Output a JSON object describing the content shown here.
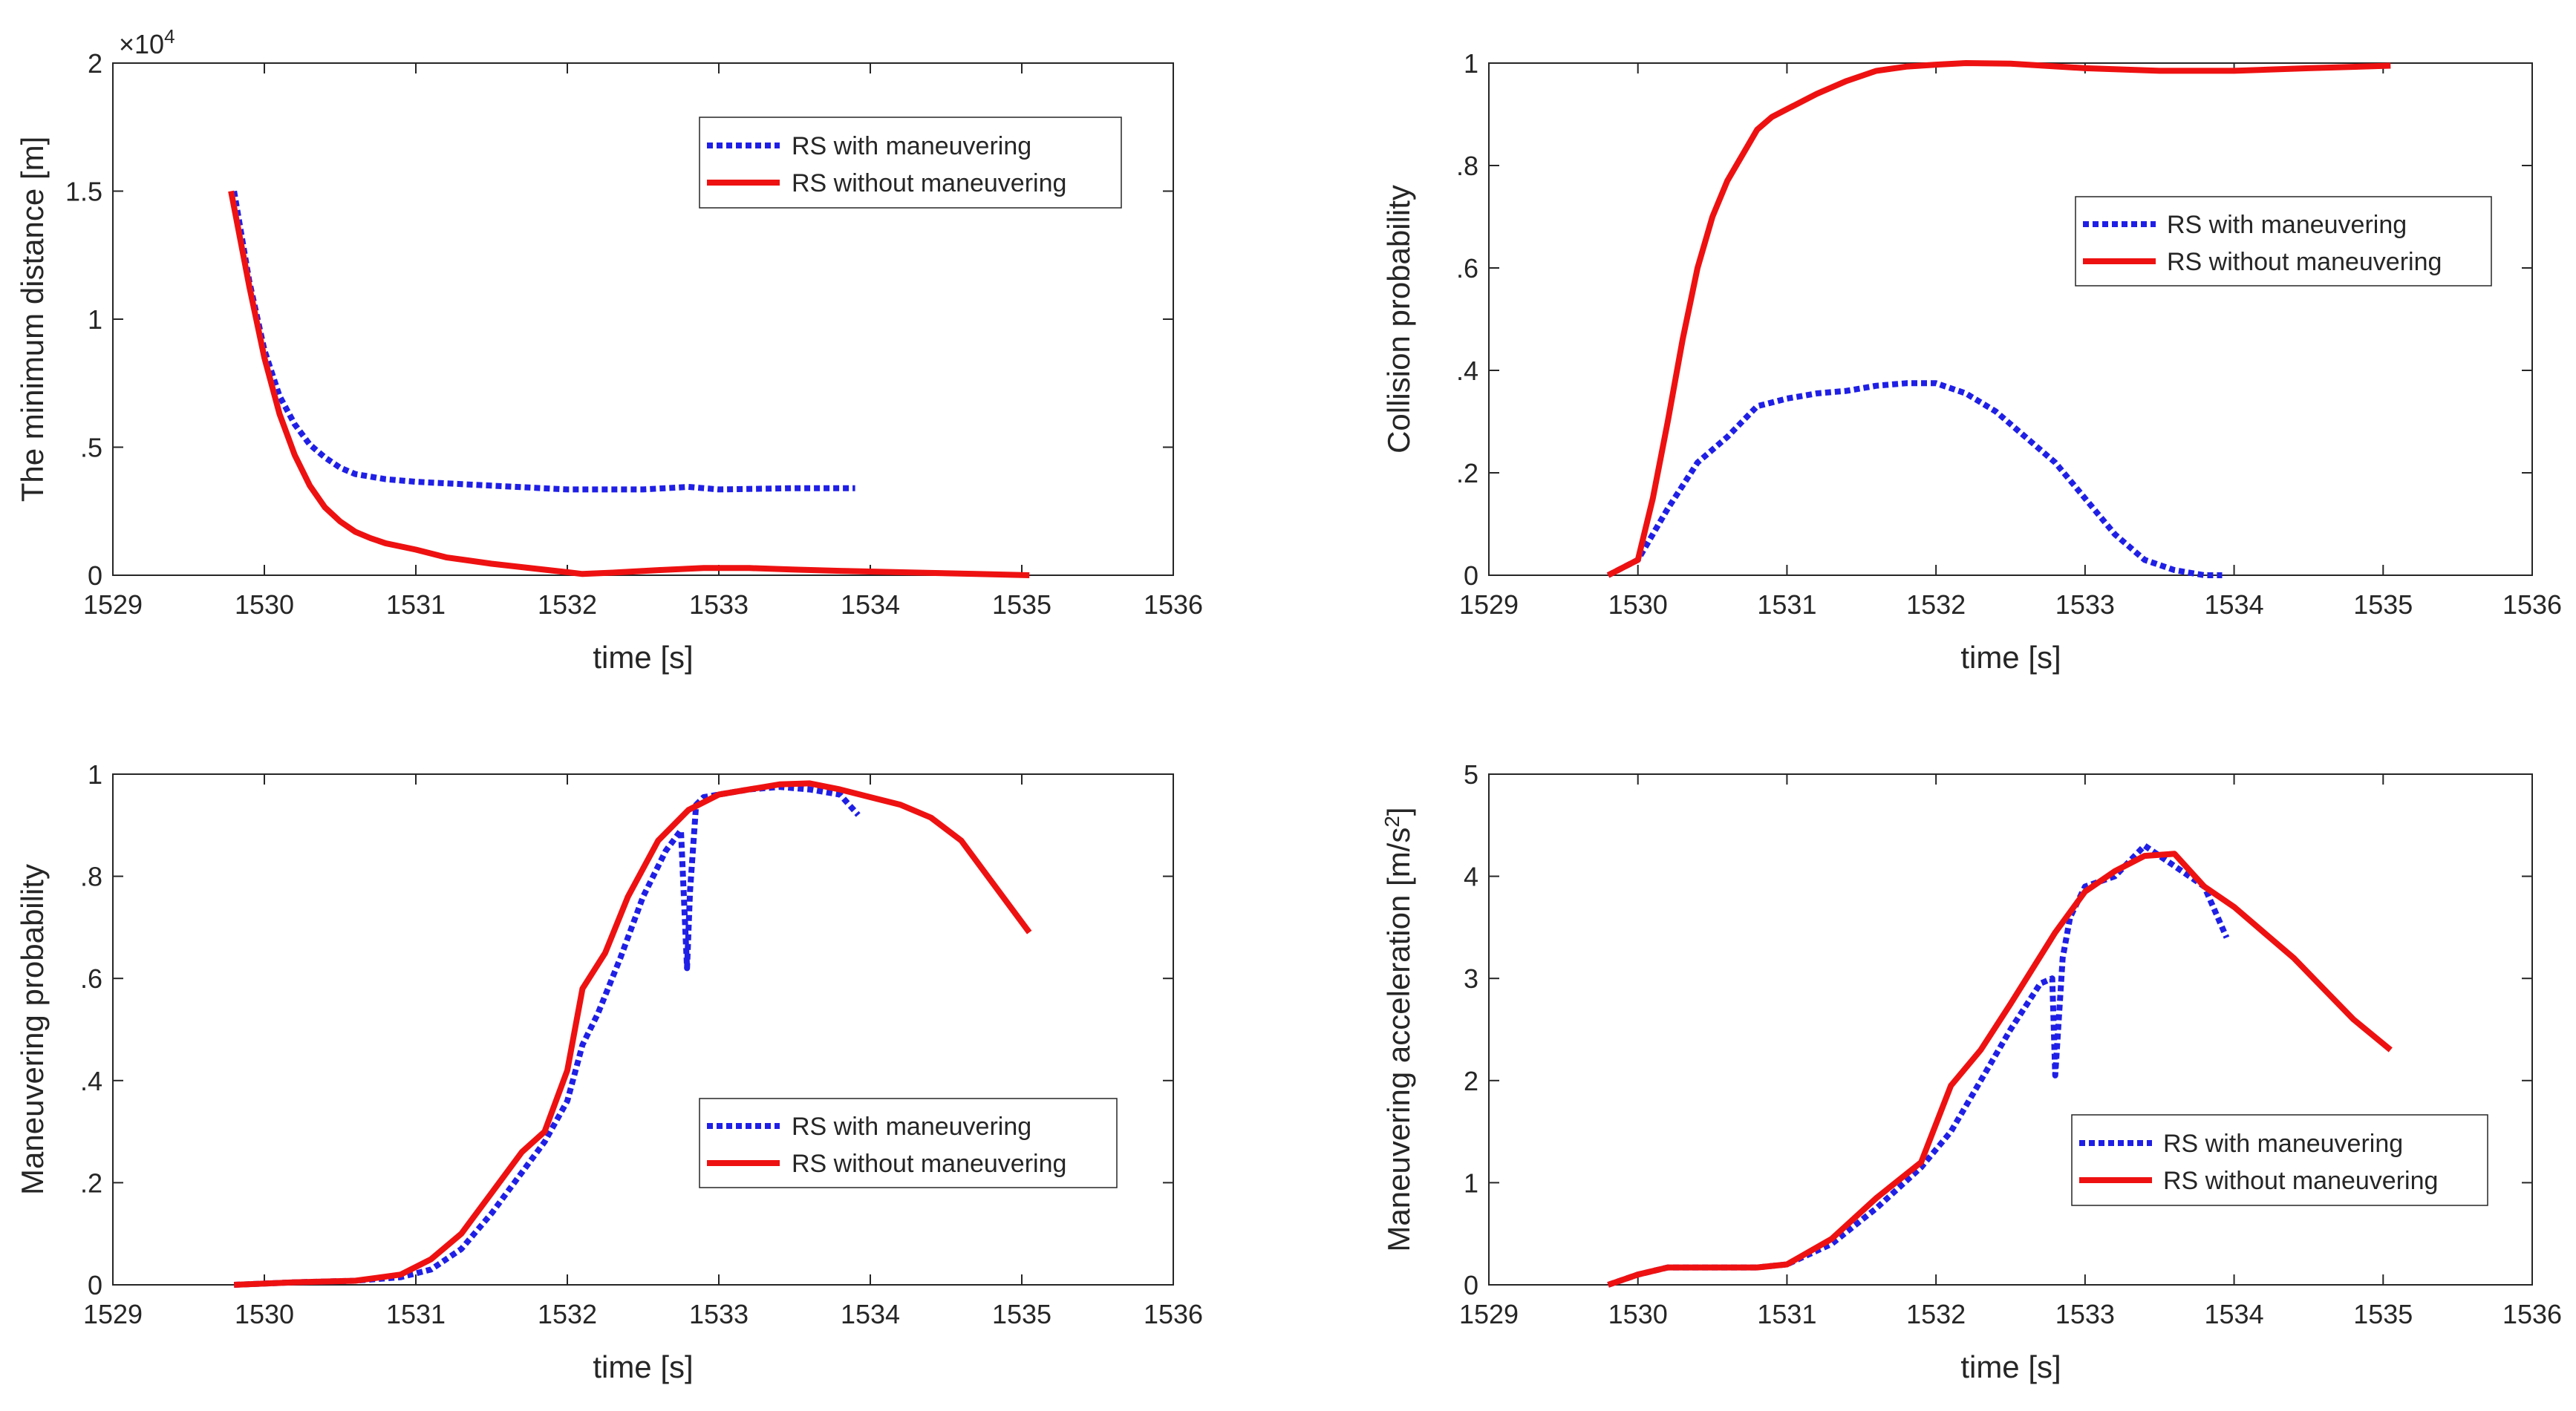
{
  "figure": {
    "caption": ""
  },
  "colors": {
    "with_maneuvering": "#1f1fe6",
    "without_maneuvering": "#ee1111",
    "axis": "#262626"
  },
  "chart_data": [
    {
      "id": "min-distance",
      "type": "line",
      "title": "",
      "xlabel": "time [s]",
      "ylabel": "The minimum distance [m]",
      "xlim": [
        1529,
        1536
      ],
      "ylim": [
        0,
        20000
      ],
      "xticks": [
        1529,
        1530,
        1531,
        1532,
        1533,
        1534,
        1535,
        1536
      ],
      "yticks": [
        0,
        0.5,
        1,
        1.5,
        2
      ],
      "y_scale_label": "×10",
      "y_scale_exp": "4",
      "y_scale": 10000,
      "legend_position": "top-right",
      "series": [
        {
          "name": "RS with maneuvering",
          "style": "dotted",
          "x": [
            1529.8,
            1529.9,
            1530.0,
            1530.1,
            1530.2,
            1530.3,
            1530.4,
            1530.5,
            1530.6,
            1530.8,
            1531.0,
            1531.5,
            1532.0,
            1532.5,
            1532.8,
            1533.0,
            1533.5,
            1533.9
          ],
          "y": [
            15000,
            11500,
            8800,
            7000,
            5900,
            5100,
            4600,
            4200,
            3950,
            3750,
            3650,
            3500,
            3350,
            3350,
            3450,
            3350,
            3400,
            3400
          ]
        },
        {
          "name": "RS without maneuvering",
          "style": "solid",
          "x": [
            1529.78,
            1529.9,
            1530.0,
            1530.1,
            1530.2,
            1530.3,
            1530.4,
            1530.5,
            1530.6,
            1530.7,
            1530.8,
            1531.0,
            1531.2,
            1531.5,
            1531.8,
            1532.0,
            1532.1,
            1532.3,
            1532.6,
            1532.9,
            1533.2,
            1533.5,
            1533.8,
            1534.1,
            1534.4,
            1534.7,
            1535.05
          ],
          "y": [
            15000,
            11300,
            8500,
            6300,
            4700,
            3500,
            2650,
            2100,
            1700,
            1450,
            1250,
            1000,
            700,
            450,
            250,
            120,
            50,
            100,
            200,
            280,
            280,
            220,
            170,
            130,
            90,
            50,
            0
          ]
        }
      ]
    },
    {
      "id": "collision-probability",
      "type": "line",
      "title": "",
      "xlabel": "time [s]",
      "ylabel": "Collision probability",
      "xlim": [
        1529,
        1536
      ],
      "ylim": [
        0,
        1
      ],
      "xticks": [
        1529,
        1530,
        1531,
        1532,
        1533,
        1534,
        1535,
        1536
      ],
      "yticks": [
        0,
        0.2,
        0.4,
        0.6,
        0.8,
        1
      ],
      "legend_position": "middle-right",
      "series": [
        {
          "name": "RS with maneuvering",
          "style": "dotted",
          "x": [
            1529.8,
            1530.0,
            1530.2,
            1530.4,
            1530.6,
            1530.8,
            1531.0,
            1531.2,
            1531.4,
            1531.6,
            1531.8,
            1532.0,
            1532.2,
            1532.4,
            1532.6,
            1532.8,
            1533.0,
            1533.2,
            1533.4,
            1533.6,
            1533.8,
            1533.92
          ],
          "y": [
            0.0,
            0.03,
            0.13,
            0.22,
            0.27,
            0.33,
            0.345,
            0.355,
            0.36,
            0.37,
            0.375,
            0.375,
            0.355,
            0.32,
            0.27,
            0.22,
            0.15,
            0.08,
            0.03,
            0.01,
            0.0,
            0.0
          ]
        },
        {
          "name": "RS without maneuvering",
          "style": "solid",
          "x": [
            1529.8,
            1530.0,
            1530.1,
            1530.2,
            1530.3,
            1530.4,
            1530.5,
            1530.6,
            1530.7,
            1530.8,
            1530.9,
            1531.0,
            1531.2,
            1531.4,
            1531.6,
            1531.8,
            1532.0,
            1532.2,
            1532.5,
            1533.0,
            1533.5,
            1534.0,
            1534.5,
            1535.05
          ],
          "y": [
            0.0,
            0.03,
            0.15,
            0.3,
            0.46,
            0.6,
            0.7,
            0.77,
            0.82,
            0.87,
            0.895,
            0.91,
            0.94,
            0.965,
            0.985,
            0.993,
            0.997,
            1.0,
            0.999,
            0.99,
            0.985,
            0.985,
            0.99,
            0.995
          ]
        }
      ]
    },
    {
      "id": "maneuvering-probability",
      "type": "line",
      "title": "",
      "xlabel": "time [s]",
      "ylabel": "Maneuvering probability",
      "xlim": [
        1529,
        1536
      ],
      "ylim": [
        0,
        1
      ],
      "xticks": [
        1529,
        1530,
        1531,
        1532,
        1533,
        1534,
        1535,
        1536
      ],
      "yticks": [
        0,
        0.2,
        0.4,
        0.6,
        0.8,
        1
      ],
      "legend_position": "bottom-right",
      "series": [
        {
          "name": "RS with maneuvering",
          "style": "dotted",
          "x": [
            1529.8,
            1530.2,
            1530.6,
            1530.9,
            1531.1,
            1531.3,
            1531.5,
            1531.7,
            1531.85,
            1532.0,
            1532.1,
            1532.2,
            1532.35,
            1532.5,
            1532.65,
            1532.75,
            1532.79,
            1532.81,
            1532.85,
            1532.9,
            1533.0,
            1533.2,
            1533.4,
            1533.6,
            1533.8,
            1533.92
          ],
          "y": [
            0.0,
            0.005,
            0.008,
            0.015,
            0.03,
            0.07,
            0.14,
            0.22,
            0.28,
            0.36,
            0.47,
            0.53,
            0.64,
            0.76,
            0.85,
            0.89,
            0.62,
            0.77,
            0.94,
            0.955,
            0.96,
            0.97,
            0.975,
            0.97,
            0.96,
            0.92
          ]
        },
        {
          "name": "RS without maneuvering",
          "style": "solid",
          "x": [
            1529.8,
            1530.2,
            1530.6,
            1530.9,
            1531.1,
            1531.3,
            1531.5,
            1531.7,
            1531.85,
            1532.0,
            1532.1,
            1532.25,
            1532.4,
            1532.6,
            1532.8,
            1533.0,
            1533.2,
            1533.4,
            1533.6,
            1533.8,
            1534.0,
            1534.2,
            1534.4,
            1534.6,
            1534.8,
            1535.05
          ],
          "y": [
            0.0,
            0.005,
            0.008,
            0.02,
            0.05,
            0.1,
            0.18,
            0.26,
            0.3,
            0.42,
            0.58,
            0.65,
            0.76,
            0.87,
            0.93,
            0.96,
            0.97,
            0.98,
            0.982,
            0.97,
            0.955,
            0.94,
            0.915,
            0.87,
            0.79,
            0.69
          ]
        }
      ]
    },
    {
      "id": "maneuvering-acceleration",
      "type": "line",
      "title": "",
      "xlabel": "time [s]",
      "ylabel": "Maneuvering acceleration [m/s",
      "ylabel_exp": "2",
      "ylabel_end": "]",
      "xlim": [
        1529,
        1536
      ],
      "ylim": [
        0,
        5
      ],
      "xticks": [
        1529,
        1530,
        1531,
        1532,
        1533,
        1534,
        1535,
        1536
      ],
      "yticks": [
        0,
        1,
        2,
        3,
        4,
        5
      ],
      "legend_position": "bottom-right",
      "series": [
        {
          "name": "RS with maneuvering",
          "style": "dotted",
          "x": [
            1529.8,
            1530.0,
            1530.2,
            1530.5,
            1530.8,
            1531.0,
            1531.3,
            1531.6,
            1531.9,
            1532.1,
            1532.3,
            1532.5,
            1532.7,
            1532.78,
            1532.8,
            1532.85,
            1532.9,
            1533.0,
            1533.2,
            1533.4,
            1533.5,
            1533.6,
            1533.8,
            1533.95
          ],
          "y": [
            0.0,
            0.1,
            0.17,
            0.17,
            0.17,
            0.2,
            0.4,
            0.75,
            1.15,
            1.5,
            2.0,
            2.5,
            2.95,
            3.0,
            2.05,
            3.2,
            3.6,
            3.9,
            4.0,
            4.3,
            4.2,
            4.1,
            3.9,
            3.4
          ]
        },
        {
          "name": "RS without maneuvering",
          "style": "solid",
          "x": [
            1529.8,
            1530.0,
            1530.2,
            1530.5,
            1530.8,
            1531.0,
            1531.3,
            1531.6,
            1531.9,
            1532.1,
            1532.3,
            1532.5,
            1532.8,
            1533.0,
            1533.2,
            1533.4,
            1533.6,
            1533.8,
            1534.0,
            1534.2,
            1534.4,
            1534.6,
            1534.8,
            1535.05
          ],
          "y": [
            0.0,
            0.1,
            0.17,
            0.17,
            0.17,
            0.2,
            0.45,
            0.85,
            1.2,
            1.95,
            2.3,
            2.75,
            3.45,
            3.85,
            4.05,
            4.2,
            4.22,
            3.9,
            3.7,
            3.45,
            3.2,
            2.9,
            2.6,
            2.3
          ]
        }
      ]
    }
  ]
}
